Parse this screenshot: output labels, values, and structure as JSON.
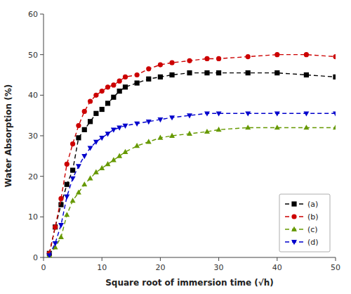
{
  "chart_data": {
    "type": "line",
    "xlabel": "Square root of immersion time (√h)",
    "ylabel": "Water Absorption (%)",
    "x": [
      1,
      2,
      3,
      4,
      5,
      6,
      7,
      8,
      9,
      10,
      11,
      12,
      13,
      14,
      16,
      18,
      20,
      22,
      25,
      28,
      30,
      35,
      40,
      45,
      50
    ],
    "series": [
      {
        "name": "(a)",
        "color": "#000000",
        "marker": "square",
        "line_style": "dashed",
        "values": [
          1.0,
          7.5,
          13.0,
          18.0,
          21.5,
          29.5,
          31.5,
          33.5,
          35.5,
          36.5,
          38.0,
          39.5,
          41.0,
          42.0,
          43.0,
          44.0,
          44.5,
          45.0,
          45.5,
          45.5,
          45.5,
          45.5,
          45.5,
          45.0,
          44.5
        ]
      },
      {
        "name": "(b)",
        "color": "#cc0000",
        "marker": "circle",
        "line_style": "dashed",
        "values": [
          1.0,
          7.5,
          14.5,
          23.0,
          28.0,
          32.5,
          36.0,
          38.5,
          40.0,
          41.0,
          42.0,
          42.5,
          43.5,
          44.5,
          45.0,
          46.5,
          47.5,
          48.0,
          48.5,
          49.0,
          49.0,
          49.5,
          50.0,
          50.0,
          49.5
        ]
      },
      {
        "name": "(c)",
        "color": "#669900",
        "marker": "triangle-up",
        "line_style": "dashed",
        "values": [
          0.5,
          2.5,
          5.0,
          10.5,
          14.0,
          16.0,
          18.0,
          19.5,
          21.0,
          22.0,
          23.0,
          24.0,
          25.0,
          26.0,
          27.5,
          28.5,
          29.5,
          30.0,
          30.5,
          31.0,
          31.5,
          32.0,
          32.0,
          32.0,
          32.0
        ]
      },
      {
        "name": "(d)",
        "color": "#0000cc",
        "marker": "triangle-down",
        "line_style": "dashed",
        "values": [
          0.5,
          3.5,
          8.0,
          15.0,
          19.5,
          22.5,
          25.0,
          27.0,
          28.5,
          29.5,
          30.5,
          31.5,
          32.0,
          32.5,
          33.0,
          33.5,
          34.0,
          34.5,
          35.0,
          35.5,
          35.5,
          35.5,
          35.5,
          35.5,
          35.5
        ]
      }
    ],
    "xlim": [
      0,
      50
    ],
    "ylim": [
      0,
      60
    ],
    "xticks": [
      0,
      10,
      20,
      30,
      40,
      50
    ],
    "yticks": [
      0,
      10,
      20,
      30,
      40,
      50,
      60
    ],
    "grid": false,
    "legend": "lower right"
  }
}
